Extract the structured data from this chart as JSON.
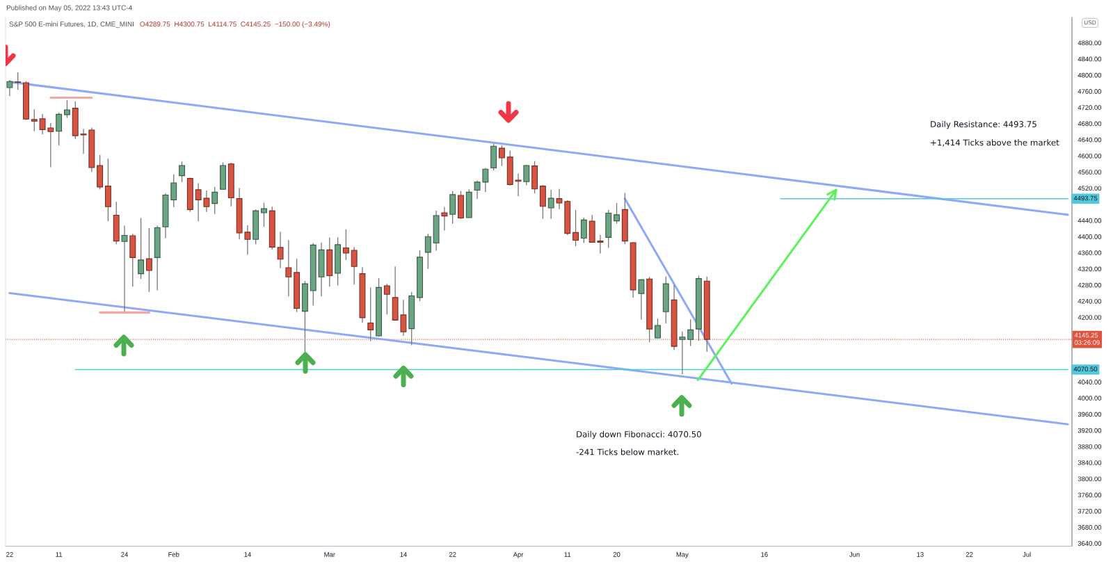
{
  "chart_data": {
    "type": "candlestick",
    "title": "S&P 500 E-mini Futures, 1D, CME_MINI",
    "subtitle": "O4289.75  H4300.75  L4114.75  C4145.25  −150.00 (−3.49%)",
    "ylabel": "USD",
    "categories": [
      "22",
      null,
      null,
      null,
      null,
      null,
      "11",
      null,
      null,
      null,
      null,
      null,
      null,
      null,
      "24",
      null,
      null,
      null,
      null,
      null,
      "Feb",
      null,
      null,
      null,
      null,
      null,
      null,
      null,
      null,
      "14",
      null,
      null,
      null,
      null,
      null,
      null,
      null,
      null,
      null,
      "Mar",
      null,
      null,
      null,
      null,
      null,
      null,
      null,
      null,
      "14",
      null,
      null,
      null,
      null,
      null,
      "22",
      null,
      null,
      null,
      null,
      null,
      null,
      null,
      "Apr",
      null,
      null,
      null,
      null,
      null,
      "11",
      null,
      null,
      null,
      null,
      null,
      "20",
      null,
      null,
      null,
      null,
      null,
      null,
      null,
      "May",
      null,
      null,
      null,
      null,
      null,
      null,
      null,
      null,
      null,
      "16",
      null,
      null,
      null,
      null,
      null,
      null,
      null,
      null,
      null,
      null,
      "Jun",
      null,
      null,
      null,
      null,
      null,
      null,
      null,
      "13",
      null,
      null,
      null,
      null,
      null,
      "22",
      null,
      null,
      null,
      null,
      null,
      null,
      "Jul",
      null,
      null,
      null,
      null,
      null
    ],
    "ohlc": [
      [
        4769,
        4788,
        4748,
        4784
      ],
      [
        4783,
        4807,
        4764,
        4782
      ],
      [
        4781,
        4785,
        4689,
        4691
      ],
      [
        4690,
        4715,
        4661,
        4686
      ],
      [
        4692,
        4704,
        4653,
        4665
      ],
      [
        4669,
        4681,
        4572,
        4660
      ],
      [
        4661,
        4707,
        4626,
        4703
      ],
      [
        4702,
        4738,
        4694,
        4714
      ],
      [
        4718,
        4735,
        4642,
        4650
      ],
      [
        4654,
        4667,
        4605,
        4652
      ],
      [
        4664,
        4670,
        4560,
        4571
      ],
      [
        4576,
        4602,
        4517,
        4523
      ],
      [
        4525,
        4593,
        4438,
        4474
      ],
      [
        4453,
        4486,
        4381,
        4389
      ],
      [
        4388,
        4427,
        4214,
        4403
      ],
      [
        4402,
        4407,
        4276,
        4348
      ],
      [
        4308,
        4446,
        4295,
        4342
      ],
      [
        4345,
        4421,
        4263,
        4316
      ],
      [
        4348,
        4427,
        4267,
        4422
      ],
      [
        4424,
        4507,
        4396,
        4503
      ],
      [
        4491,
        4554,
        4473,
        4533
      ],
      [
        4551,
        4586,
        4535,
        4576
      ],
      [
        4544,
        4546,
        4461,
        4467
      ],
      [
        4516,
        4532,
        4438,
        4491
      ],
      [
        4495,
        4514,
        4461,
        4474
      ],
      [
        4482,
        4523,
        4456,
        4510
      ],
      [
        4517,
        4584,
        4516,
        4576
      ],
      [
        4580,
        4583,
        4475,
        4496
      ],
      [
        4494,
        4520,
        4393,
        4409
      ],
      [
        4411,
        4428,
        4355,
        4393
      ],
      [
        4393,
        4467,
        4381,
        4464
      ],
      [
        4459,
        4484,
        4424,
        4469
      ],
      [
        4464,
        4474,
        4368,
        4374
      ],
      [
        4373,
        4412,
        4322,
        4344
      ],
      [
        4323,
        4391,
        4252,
        4300
      ],
      [
        4311,
        4345,
        4213,
        4222
      ],
      [
        4215,
        4290,
        4108,
        4283
      ],
      [
        4266,
        4384,
        4229,
        4379
      ],
      [
        4300,
        4385,
        4252,
        4367
      ],
      [
        4367,
        4398,
        4276,
        4303
      ],
      [
        4309,
        4398,
        4279,
        4380
      ],
      [
        4372,
        4418,
        4342,
        4359
      ],
      [
        4366,
        4374,
        4281,
        4326
      ],
      [
        4308,
        4324,
        4187,
        4199
      ],
      [
        4186,
        4274,
        4141,
        4169
      ],
      [
        4154,
        4297,
        4152,
        4274
      ],
      [
        4278,
        4283,
        4207,
        4257
      ],
      [
        4249,
        4326,
        4192,
        4193
      ],
      [
        4206,
        4243,
        4154,
        4164
      ],
      [
        4172,
        4263,
        4131,
        4253
      ],
      [
        4249,
        4366,
        4240,
        4349
      ],
      [
        4361,
        4407,
        4320,
        4400
      ],
      [
        4384,
        4464,
        4365,
        4452
      ],
      [
        4459,
        4473,
        4415,
        4451
      ],
      [
        4455,
        4513,
        4432,
        4504
      ],
      [
        4502,
        4513,
        4444,
        4446
      ],
      [
        4447,
        4517,
        4446,
        4510
      ],
      [
        4515,
        4539,
        4493,
        4535
      ],
      [
        4535,
        4570,
        4510,
        4567
      ],
      [
        4570,
        4630,
        4564,
        4624
      ],
      [
        4619,
        4626,
        4575,
        4595
      ],
      [
        4597,
        4613,
        4526,
        4529
      ],
      [
        4540,
        4556,
        4500,
        4537
      ],
      [
        4536,
        4578,
        4527,
        4576
      ],
      [
        4575,
        4587,
        4507,
        4518
      ],
      [
        4525,
        4528,
        4444,
        4475
      ],
      [
        4471,
        4516,
        4444,
        4495
      ],
      [
        4494,
        4518,
        4468,
        4483
      ],
      [
        4487,
        4490,
        4404,
        4408
      ],
      [
        4410,
        4466,
        4376,
        4391
      ],
      [
        4396,
        4447,
        4384,
        4441
      ],
      [
        4438,
        4454,
        4385,
        4386
      ],
      [
        4389,
        4404,
        4358,
        4386
      ],
      [
        4398,
        4466,
        4372,
        4458
      ],
      [
        4439,
        4483,
        4432,
        4454
      ],
      [
        4467,
        4508,
        4381,
        4389
      ],
      [
        4385,
        4386,
        4249,
        4268
      ],
      [
        4259,
        4295,
        4194,
        4293
      ],
      [
        4295,
        4300,
        4138,
        4171
      ],
      [
        4149,
        4197,
        4148,
        4180
      ],
      [
        4214,
        4301,
        4185,
        4283
      ],
      [
        4243,
        4280,
        4119,
        4128
      ],
      [
        4145,
        4165,
        4059,
        4151
      ],
      [
        4145,
        4195,
        4129,
        4169
      ],
      [
        4171,
        4303,
        4142,
        4296
      ],
      [
        4289.75,
        4300.75,
        4114.75,
        4145.25
      ],
      null,
      null,
      null,
      null,
      null,
      null,
      null,
      null,
      null,
      null,
      null,
      null,
      null,
      null,
      null,
      null,
      null,
      null,
      null,
      null,
      null,
      null,
      null,
      null,
      null,
      null,
      null,
      null,
      null,
      null,
      null,
      null,
      null,
      null,
      null,
      null,
      null,
      null,
      null,
      null,
      null,
      null,
      null,
      null
    ],
    "colors": [
      "#6ba583",
      "#d75442",
      "#d75442",
      "#d75442",
      "#d75442",
      "#d75442",
      "#6ba583",
      "#6ba583",
      "#d75442",
      "#d75442",
      "#d75442",
      "#d75442",
      "#d75442",
      "#d75442",
      "#6ba583",
      "#d75442",
      "#6ba583",
      "#d75442",
      "#6ba583",
      "#6ba583",
      "#6ba583",
      "#6ba583",
      "#d75442",
      "#d75442",
      "#d75442",
      "#6ba583",
      "#6ba583",
      "#d75442",
      "#d75442",
      "#d75442",
      "#6ba583",
      "#6ba583",
      "#d75442",
      "#d75442",
      "#d75442",
      "#d75442",
      "#6ba583",
      "#6ba583",
      "#6ba583",
      "#d75442",
      "#6ba583",
      "#d75442",
      "#d75442",
      "#d75442",
      "#d75442",
      "#6ba583",
      "#d75442",
      "#d75442",
      "#d75442",
      "#6ba583",
      "#6ba583",
      "#6ba583",
      "#6ba583",
      "#d75442",
      "#6ba583",
      "#d75442",
      "#6ba583",
      "#6ba583",
      "#6ba583",
      "#6ba583",
      "#d75442",
      "#d75442",
      "#d75442",
      "#6ba583",
      "#d75442",
      "#d75442",
      "#6ba583",
      "#d75442",
      "#d75442",
      "#d75442",
      "#6ba583",
      "#d75442",
      "#d75442",
      "#6ba583",
      "#6ba583",
      "#d75442",
      "#d75442",
      "#6ba583",
      "#d75442",
      "#6ba583",
      "#6ba583",
      "#d75442",
      "#6ba583",
      "#6ba583",
      "#6ba583",
      "#d75442",
      null,
      null,
      null,
      null,
      null,
      null,
      null,
      null,
      null,
      null,
      null,
      null,
      null,
      null,
      null,
      null,
      null,
      null,
      null,
      null,
      null,
      null,
      null,
      null,
      null,
      null,
      null,
      null,
      null,
      null,
      null,
      null,
      null,
      null,
      null,
      null,
      null,
      null,
      null,
      null,
      null,
      null,
      null,
      null
    ],
    "series": [
      {
        "type": "line",
        "color": "#8fa9f7",
        "values": [
          4783,
          null,
          null,
          null,
          null,
          null,
          null,
          null,
          null,
          null,
          null,
          null,
          null,
          null,
          null,
          null,
          null,
          null,
          null,
          null,
          null,
          null,
          null,
          null,
          null,
          null,
          null,
          null,
          null,
          null,
          null,
          null,
          null,
          null,
          null,
          null,
          null,
          null,
          null,
          null,
          null,
          null,
          null,
          null,
          null,
          null,
          null,
          null,
          null,
          null,
          null,
          null,
          null,
          null,
          null,
          null,
          null,
          null,
          null,
          null,
          null,
          null,
          null,
          null,
          null,
          null,
          null,
          null,
          null,
          null,
          null,
          null,
          null,
          null,
          null,
          null,
          null,
          null,
          null,
          null,
          null,
          null,
          null,
          null,
          null,
          null,
          null,
          null,
          null,
          null,
          null,
          null,
          null,
          null,
          null,
          null,
          null,
          null,
          null,
          null,
          null,
          null,
          null,
          null,
          null,
          null,
          null,
          null,
          null,
          null,
          null,
          null,
          null,
          null,
          null,
          null,
          null,
          null,
          null,
          null,
          null,
          null,
          null,
          null,
          null,
          null,
          null,
          null,
          null,
          4454
        ]
      },
      {
        "type": "line",
        "color": "#8fa9f7",
        "values": [
          4260,
          null,
          null,
          null,
          null,
          null,
          null,
          null,
          null,
          null,
          null,
          null,
          null,
          null,
          null,
          null,
          null,
          null,
          null,
          null,
          null,
          null,
          null,
          null,
          null,
          null,
          null,
          null,
          null,
          null,
          null,
          null,
          null,
          null,
          null,
          null,
          null,
          null,
          null,
          null,
          null,
          null,
          null,
          null,
          null,
          null,
          null,
          null,
          null,
          null,
          null,
          null,
          null,
          null,
          null,
          null,
          null,
          null,
          null,
          null,
          null,
          null,
          null,
          null,
          null,
          null,
          null,
          null,
          null,
          null,
          null,
          null,
          null,
          null,
          null,
          null,
          null,
          null,
          null,
          null,
          null,
          null,
          null,
          null,
          null,
          null,
          null,
          null,
          null,
          null,
          null,
          null,
          null,
          null,
          null,
          null,
          null,
          null,
          null,
          null,
          null,
          null,
          null,
          null,
          null,
          null,
          null,
          null,
          null,
          null,
          null,
          null,
          null,
          null,
          null,
          null,
          null,
          null,
          null,
          null,
          null,
          null,
          null,
          null,
          null,
          null,
          null,
          null,
          null,
          3935
        ]
      },
      {
        "type": "line",
        "color": "#8fa9f7",
        "values": [
          null,
          null,
          null,
          null,
          null,
          null,
          null,
          null,
          null,
          null,
          null,
          null,
          null,
          null,
          null,
          null,
          null,
          null,
          null,
          null,
          null,
          null,
          null,
          null,
          null,
          null,
          null,
          null,
          null,
          null,
          null,
          null,
          null,
          null,
          null,
          null,
          null,
          null,
          null,
          null,
          null,
          null,
          null,
          null,
          null,
          null,
          null,
          null,
          null,
          null,
          null,
          null,
          null,
          null,
          null,
          null,
          null,
          null,
          null,
          null,
          null,
          null,
          null,
          null,
          null,
          null,
          null,
          null,
          null,
          null,
          null,
          null,
          null,
          null,
          null,
          4494,
          null,
          null,
          null,
          null,
          null,
          null,
          null,
          null,
          null,
          null,
          null,
          null,
          4036,
          null,
          null,
          null,
          null,
          null,
          null,
          null,
          null,
          null,
          null,
          null,
          null,
          null,
          null,
          null,
          null,
          null,
          null,
          null,
          null,
          null,
          null,
          null,
          null,
          null,
          null,
          null,
          null,
          null,
          null,
          null,
          null,
          null,
          null,
          null,
          null,
          null,
          null,
          null,
          null,
          null
        ]
      },
      {
        "type": "line",
        "color": "#f5a5a5",
        "values": [
          null,
          null,
          null,
          null,
          null,
          4744,
          null,
          null,
          null,
          null,
          4744,
          null,
          null,
          null,
          null,
          null,
          null,
          null,
          null,
          null,
          null,
          null,
          null,
          null,
          null,
          null,
          null,
          null,
          null,
          null,
          null,
          null,
          null,
          null,
          null,
          null,
          null,
          null,
          null,
          null,
          null,
          null,
          null,
          null,
          null,
          null,
          null,
          null,
          null,
          null,
          null,
          null,
          null,
          null,
          null,
          null,
          null,
          null,
          null,
          null,
          null,
          null,
          null,
          null,
          null,
          null,
          null,
          null,
          null,
          null,
          null,
          null,
          null,
          null,
          null,
          null,
          null,
          null,
          null,
          null,
          null,
          null,
          null,
          null,
          null,
          null,
          null,
          null,
          null,
          null,
          null,
          null,
          null,
          null,
          null,
          null,
          null,
          null,
          null,
          null,
          null,
          null,
          null,
          null,
          null,
          null,
          null,
          null,
          null,
          null,
          null,
          null,
          null,
          null,
          null,
          null,
          null,
          null,
          null,
          null,
          null,
          null,
          null,
          null,
          null,
          null,
          null,
          null,
          null,
          null
        ]
      },
      {
        "type": "line",
        "color": "#f5a5a5",
        "values": [
          null,
          null,
          null,
          null,
          null,
          null,
          null,
          null,
          null,
          null,
          null,
          4212,
          null,
          null,
          null,
          null,
          null,
          4212,
          null,
          null,
          null,
          null,
          null,
          null,
          null,
          null,
          null,
          null,
          null,
          null,
          null,
          null,
          null,
          null,
          null,
          null,
          null,
          null,
          null,
          null,
          null,
          null,
          null,
          null,
          null,
          null,
          null,
          null,
          null,
          null,
          null,
          null,
          null,
          null,
          null,
          null,
          null,
          null,
          null,
          null,
          null,
          null,
          null,
          null,
          null,
          null,
          null,
          null,
          null,
          null,
          null,
          null,
          null,
          null,
          null,
          null,
          null,
          null,
          null,
          null,
          null,
          null,
          null,
          null,
          null,
          null,
          null,
          null,
          null,
          null,
          null,
          null,
          null,
          null,
          null,
          null,
          null,
          null,
          null,
          null,
          null,
          null,
          null,
          null,
          null,
          null,
          null,
          null,
          null,
          null,
          null,
          null,
          null,
          null,
          null,
          null,
          null,
          null,
          null,
          null,
          null,
          null,
          null,
          null,
          null,
          null,
          null,
          null,
          null,
          null
        ]
      },
      {
        "type": "line",
        "color": "#4fc9dc",
        "values": [
          null,
          null,
          null,
          null,
          null,
          null,
          null,
          null,
          null,
          null,
          null,
          null,
          null,
          null,
          null,
          null,
          null,
          null,
          null,
          null,
          null,
          null,
          null,
          null,
          null,
          null,
          null,
          null,
          null,
          null,
          null,
          null,
          null,
          null,
          null,
          null,
          null,
          null,
          null,
          null,
          null,
          null,
          null,
          null,
          null,
          null,
          null,
          null,
          null,
          null,
          null,
          null,
          null,
          null,
          null,
          null,
          null,
          null,
          null,
          null,
          null,
          null,
          null,
          null,
          null,
          null,
          null,
          null,
          null,
          null,
          null,
          null,
          null,
          null,
          null,
          null,
          null,
          null,
          null,
          null,
          null,
          null,
          null,
          null,
          null,
          null,
          null,
          null,
          null,
          null,
          null,
          null,
          null,
          null,
          4493.75,
          null,
          null,
          null,
          null,
          null,
          null,
          null,
          null,
          null,
          null,
          null,
          null,
          null,
          null,
          null,
          null,
          null,
          null,
          null,
          null,
          null,
          null,
          null,
          null,
          null,
          null,
          null,
          null,
          null,
          null,
          null,
          null,
          null,
          null,
          4493.75
        ],
        "value_labels": [
          null,
          null,
          null,
          null,
          null,
          null,
          null,
          null,
          null,
          null,
          null,
          null,
          null,
          null,
          null,
          null,
          null,
          null,
          null,
          null,
          null,
          null,
          null,
          null,
          null,
          null,
          null,
          null,
          null,
          null,
          null,
          null,
          null,
          null,
          null,
          null,
          null,
          null,
          null,
          null,
          null,
          null,
          null,
          null,
          null,
          null,
          null,
          null,
          null,
          null,
          null,
          null,
          null,
          null,
          null,
          null,
          null,
          null,
          null,
          null,
          null,
          null,
          null,
          null,
          null,
          null,
          null,
          null,
          null,
          null,
          null,
          null,
          null,
          null,
          null,
          null,
          null,
          null,
          null,
          null,
          null,
          null,
          null,
          null,
          null,
          null,
          null,
          null,
          null,
          null,
          null,
          null,
          null,
          null,
          null,
          null,
          null,
          null,
          null,
          null,
          null,
          null,
          null,
          null,
          null,
          null,
          null,
          null,
          null,
          null,
          null,
          null,
          null,
          null,
          null,
          null,
          null,
          null,
          null,
          null,
          null,
          null,
          null,
          null,
          null,
          null,
          null,
          null,
          null,
          "4493.75"
        ]
      },
      {
        "type": "line",
        "color": "#4fc9dc",
        "values": [
          null,
          null,
          null,
          null,
          null,
          null,
          null,
          null,
          4070.5,
          null,
          null,
          null,
          null,
          null,
          null,
          null,
          null,
          null,
          null,
          null,
          null,
          null,
          null,
          null,
          null,
          null,
          null,
          null,
          null,
          null,
          null,
          null,
          null,
          null,
          null,
          null,
          null,
          null,
          null,
          null,
          null,
          null,
          null,
          null,
          null,
          null,
          null,
          null,
          null,
          null,
          null,
          null,
          null,
          null,
          null,
          null,
          null,
          null,
          null,
          null,
          null,
          null,
          null,
          null,
          null,
          null,
          null,
          null,
          null,
          null,
          null,
          null,
          null,
          null,
          null,
          null,
          null,
          null,
          null,
          null,
          null,
          null,
          null,
          null,
          null,
          null,
          null,
          null,
          null,
          null,
          null,
          null,
          null,
          null,
          null,
          null,
          null,
          null,
          null,
          null,
          null,
          null,
          null,
          null,
          null,
          null,
          null,
          null,
          null,
          null,
          null,
          null,
          null,
          null,
          null,
          null,
          null,
          null,
          null,
          null,
          null,
          null,
          null,
          null,
          null,
          null,
          null,
          null,
          null,
          4070.5
        ],
        "value_labels": [
          null,
          null,
          null,
          null,
          null,
          null,
          null,
          null,
          null,
          null,
          null,
          null,
          null,
          null,
          null,
          null,
          null,
          null,
          null,
          null,
          null,
          null,
          null,
          null,
          null,
          null,
          null,
          null,
          null,
          null,
          null,
          null,
          null,
          null,
          null,
          null,
          null,
          null,
          null,
          null,
          null,
          null,
          null,
          null,
          null,
          null,
          null,
          null,
          null,
          null,
          null,
          null,
          null,
          null,
          null,
          null,
          null,
          null,
          null,
          null,
          null,
          null,
          null,
          null,
          null,
          null,
          null,
          null,
          null,
          null,
          null,
          null,
          null,
          null,
          null,
          null,
          null,
          null,
          null,
          null,
          null,
          null,
          null,
          null,
          null,
          null,
          null,
          null,
          null,
          null,
          null,
          null,
          null,
          null,
          null,
          null,
          null,
          null,
          null,
          null,
          null,
          null,
          null,
          null,
          null,
          null,
          null,
          null,
          null,
          null,
          null,
          null,
          null,
          null,
          null,
          null,
          null,
          null,
          null,
          null,
          null,
          null,
          null,
          null,
          null,
          null,
          null,
          null,
          null,
          "4070.50"
        ]
      }
    ],
    "ref_lines": [
      {
        "axis": "y",
        "value": 4145.25,
        "label": "4145.25\n03:26:09",
        "color": "#e0533f",
        "line_style": "dotted"
      }
    ],
    "ylim": [
      3633,
      4943
    ],
    "yticks": [
      {
        "value": 3640,
        "label": "3640.00"
      },
      {
        "value": 3680,
        "label": "3680.00"
      },
      {
        "value": 3720,
        "label": "3720.00"
      },
      {
        "value": 3760,
        "label": "3760.00"
      },
      {
        "value": 3800,
        "label": "3800.00"
      },
      {
        "value": 3840,
        "label": "3840.00"
      },
      {
        "value": 3880,
        "label": "3880.00"
      },
      {
        "value": 3920,
        "label": "3920.00"
      },
      {
        "value": 3960,
        "label": "3960.00"
      },
      {
        "value": 4000,
        "label": "4000.00"
      },
      {
        "value": 4040,
        "label": "4040.00"
      },
      {
        "value": 4200,
        "label": "4200.00"
      },
      {
        "value": 4240,
        "label": "4240.00"
      },
      {
        "value": 4280,
        "label": "4280.00"
      },
      {
        "value": 4320,
        "label": "4320.00"
      },
      {
        "value": 4360,
        "label": "4360.00"
      },
      {
        "value": 4400,
        "label": "4400.00"
      },
      {
        "value": 4440,
        "label": "4440.00"
      },
      {
        "value": 4520,
        "label": "4520.00"
      },
      {
        "value": 4560,
        "label": "4560.00"
      },
      {
        "value": 4600,
        "label": "4600.00"
      },
      {
        "value": 4640,
        "label": "4640.00"
      },
      {
        "value": 4680,
        "label": "4680.00"
      },
      {
        "value": 4720,
        "label": "4720.00"
      },
      {
        "value": 4760,
        "label": "4760.00"
      },
      {
        "value": 4800,
        "label": "4800.00"
      },
      {
        "value": 4840,
        "label": "4840.00"
      },
      {
        "value": 4880,
        "label": "4880.00"
      }
    ],
    "annotations": [
      "Published on May 05, 2022 13:43 UTC-4",
      "Daily Resistance: 4493.75",
      "+1,414 Ticks above the market",
      "Daily down Fibonacci: 4070.50",
      "-241 Ticks below market."
    ]
  }
}
